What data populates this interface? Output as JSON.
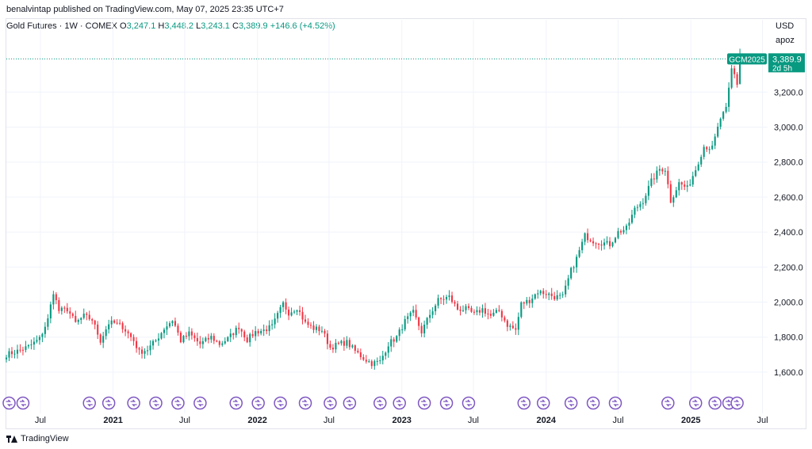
{
  "header": {
    "publisher_line": "benalvintap published on TradingView.com, May 07, 2025 23:35 UTC+7"
  },
  "legend": {
    "symbol_line": "Gold Futures · 1W · COMEX",
    "open_label": "O",
    "open_value": "3,247.1",
    "high_label": "H",
    "high_value": "3,448.2",
    "low_label": "L",
    "low_value": "3,243.1",
    "close_label": "C",
    "close_value": "3,389.9",
    "change": "+146.6 (+4.52%)"
  },
  "price_scale": {
    "currency": "USD",
    "user": "apoz"
  },
  "current_price": {
    "ticker": "GCM2025",
    "value": "3,389.9",
    "countdown": "2d 5h"
  },
  "footer": {
    "brand": "TradingView"
  },
  "colors": {
    "up": "#089981",
    "down": "#f23645",
    "event_marker": "#7e57c2",
    "grid": "#f0f3fa",
    "axis_text": "#131722"
  },
  "chart_data": {
    "type": "candlestick",
    "title": "Gold Futures · 1W · COMEX",
    "ylim": [
      1500,
      3500
    ],
    "y_ticks": [
      "1,600.0",
      "1,800.0",
      "2,000.0",
      "2,200.0",
      "2,400.0",
      "2,600.0",
      "2,800.0",
      "3,000.0",
      "3,200.0"
    ],
    "y_tick_values": [
      1600,
      1800,
      2000,
      2200,
      2400,
      2600,
      2800,
      3000,
      3200
    ],
    "x_ticks": [
      "Jul",
      "2021",
      "Jul",
      "2022",
      "Jul",
      "2023",
      "Jul",
      "2024",
      "Jul",
      "2025",
      "Jul"
    ],
    "x_tick_dates": [
      "2020-07-01",
      "2021-01-01",
      "2021-07-01",
      "2022-01-01",
      "2022-07-01",
      "2023-01-01",
      "2023-07-01",
      "2024-01-01",
      "2024-07-01",
      "2025-01-01",
      "2025-07-01"
    ],
    "bold_ticks": [
      "2021",
      "2022",
      "2023",
      "2024",
      "2025"
    ],
    "x_start": "2020-04-06",
    "x_end": "2025-07-14",
    "close_path": [
      [
        "2020-04-06",
        1700
      ],
      [
        "2020-05-04",
        1720
      ],
      [
        "2020-06-01",
        1745
      ],
      [
        "2020-06-29",
        1790
      ],
      [
        "2020-07-20",
        1900
      ],
      [
        "2020-08-03",
        2060
      ],
      [
        "2020-08-17",
        1950
      ],
      [
        "2020-09-07",
        1960
      ],
      [
        "2020-09-28",
        1880
      ],
      [
        "2020-10-19",
        1920
      ],
      [
        "2020-11-09",
        1900
      ],
      [
        "2020-11-30",
        1780
      ],
      [
        "2020-12-21",
        1880
      ],
      [
        "2021-01-04",
        1880
      ],
      [
        "2021-01-25",
        1860
      ],
      [
        "2021-02-22",
        1780
      ],
      [
        "2021-03-08",
        1715
      ],
      [
        "2021-03-29",
        1730
      ],
      [
        "2021-04-19",
        1780
      ],
      [
        "2021-05-10",
        1850
      ],
      [
        "2021-06-01",
        1900
      ],
      [
        "2021-06-21",
        1780
      ],
      [
        "2021-07-12",
        1820
      ],
      [
        "2021-08-09",
        1760
      ],
      [
        "2021-09-06",
        1800
      ],
      [
        "2021-09-27",
        1760
      ],
      [
        "2021-10-18",
        1790
      ],
      [
        "2021-11-15",
        1860
      ],
      [
        "2021-12-06",
        1785
      ],
      [
        "2021-12-27",
        1830
      ],
      [
        "2022-01-17",
        1840
      ],
      [
        "2022-02-07",
        1860
      ],
      [
        "2022-03-07",
        1990
      ],
      [
        "2022-03-21",
        1940
      ],
      [
        "2022-04-11",
        1970
      ],
      [
        "2022-05-02",
        1880
      ],
      [
        "2022-05-23",
        1850
      ],
      [
        "2022-06-13",
        1840
      ],
      [
        "2022-07-04",
        1740
      ],
      [
        "2022-07-25",
        1760
      ],
      [
        "2022-08-15",
        1770
      ],
      [
        "2022-09-05",
        1720
      ],
      [
        "2022-09-26",
        1680
      ],
      [
        "2022-10-17",
        1650
      ],
      [
        "2022-11-07",
        1660
      ],
      [
        "2022-11-28",
        1760
      ],
      [
        "2022-12-19",
        1800
      ],
      [
        "2023-01-09",
        1890
      ],
      [
        "2023-01-30",
        1940
      ],
      [
        "2023-02-20",
        1830
      ],
      [
        "2023-03-13",
        1930
      ],
      [
        "2023-04-03",
        2010
      ],
      [
        "2023-05-01",
        2030
      ],
      [
        "2023-05-22",
        1960
      ],
      [
        "2023-06-12",
        1960
      ],
      [
        "2023-07-03",
        1930
      ],
      [
        "2023-07-24",
        1960
      ],
      [
        "2023-08-14",
        1920
      ],
      [
        "2023-09-04",
        1950
      ],
      [
        "2023-09-25",
        1870
      ],
      [
        "2023-10-16",
        1840
      ],
      [
        "2023-10-30",
        1990
      ],
      [
        "2023-11-20",
        2010
      ],
      [
        "2023-12-11",
        2060
      ],
      [
        "2024-01-01",
        2050
      ],
      [
        "2024-01-22",
        2030
      ],
      [
        "2024-02-12",
        2030
      ],
      [
        "2024-03-04",
        2180
      ],
      [
        "2024-03-18",
        2250
      ],
      [
        "2024-04-08",
        2380
      ],
      [
        "2024-04-29",
        2350
      ],
      [
        "2024-05-20",
        2340
      ],
      [
        "2024-06-10",
        2330
      ],
      [
        "2024-07-01",
        2400
      ],
      [
        "2024-07-22",
        2420
      ],
      [
        "2024-08-12",
        2530
      ],
      [
        "2024-09-02",
        2580
      ],
      [
        "2024-09-23",
        2690
      ],
      [
        "2024-10-14",
        2760
      ],
      [
        "2024-10-28",
        2760
      ],
      [
        "2024-11-11",
        2580
      ],
      [
        "2024-12-02",
        2680
      ],
      [
        "2024-12-23",
        2650
      ],
      [
        "2025-01-13",
        2760
      ],
      [
        "2025-02-03",
        2890
      ],
      [
        "2025-02-24",
        2880
      ],
      [
        "2025-03-17",
        3050
      ],
      [
        "2025-03-31",
        3100
      ],
      [
        "2025-04-14",
        3330
      ],
      [
        "2025-04-21",
        3300
      ],
      [
        "2025-04-28",
        3247
      ],
      [
        "2025-05-05",
        3390
      ]
    ],
    "last_candle": {
      "date": "2025-05-05",
      "open": 3247.1,
      "high": 3448.2,
      "low": 3243.1,
      "close": 3389.9
    },
    "event_markers": [
      "2020-04-13",
      "2020-05-18",
      "2020-11-02",
      "2020-12-21",
      "2021-02-22",
      "2021-04-19",
      "2021-06-14",
      "2021-08-09",
      "2021-11-08",
      "2022-01-03",
      "2022-02-28",
      "2022-05-02",
      "2022-07-04",
      "2022-08-22",
      "2022-11-07",
      "2022-12-26",
      "2023-02-27",
      "2023-04-24",
      "2023-06-19",
      "2023-11-06",
      "2023-12-25",
      "2024-03-04",
      "2024-04-29",
      "2024-06-24",
      "2024-11-04",
      "2025-01-13",
      "2025-03-03",
      "2025-04-07",
      "2025-04-28"
    ],
    "last_price_line": 3389.9
  }
}
